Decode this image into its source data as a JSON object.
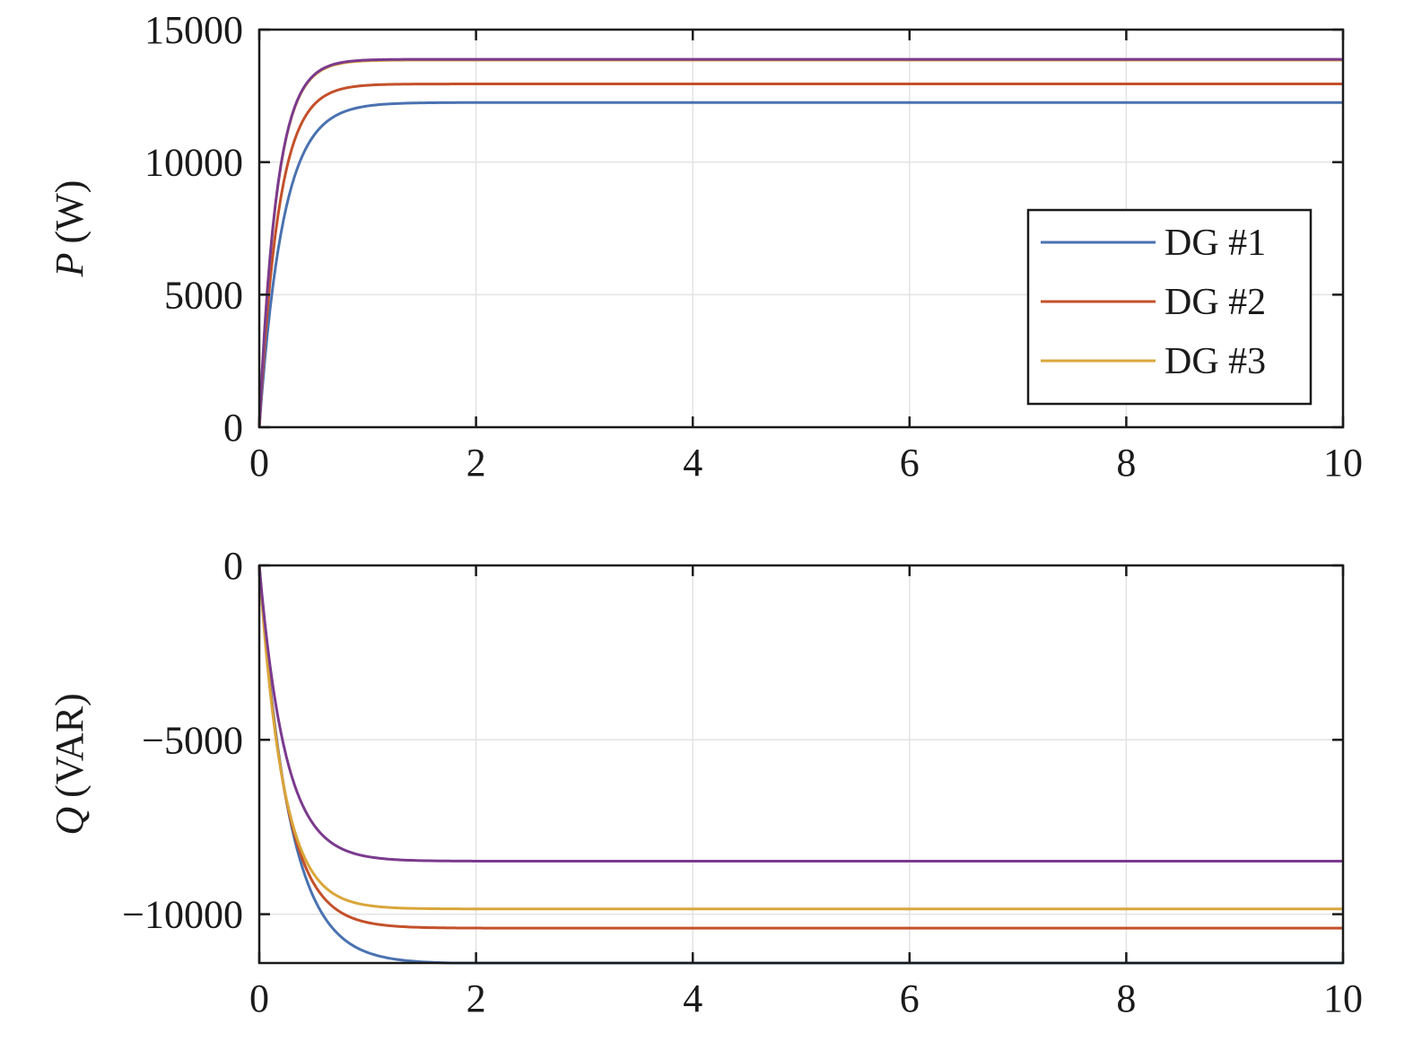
{
  "chart_data": [
    {
      "type": "line",
      "ylabel_italic": "P",
      "ylabel_unit": "(W)",
      "xlim": [
        0,
        10
      ],
      "ylim": [
        0,
        15000
      ],
      "xticks": [
        "0",
        "2",
        "4",
        "6",
        "8",
        "10"
      ],
      "yticks": [
        "0",
        "5000",
        "10000",
        "15000"
      ],
      "grid": true,
      "legend": "inside-right",
      "series": [
        {
          "name": "DG #1",
          "color": "#4a72b0",
          "initial": 0,
          "final": 12250,
          "tau": 0.22
        },
        {
          "name": "DG #2",
          "color": "#c4502a",
          "initial": 0,
          "final": 12950,
          "tau": 0.18
        },
        {
          "name": "DG #3",
          "color": "#d9a63a",
          "initial": 0,
          "final": 13850,
          "tau": 0.16
        },
        {
          "name": "",
          "color": "#7b3a8e",
          "initial": 0,
          "final": 13880,
          "tau": 0.16
        }
      ]
    },
    {
      "type": "line",
      "ylabel_italic": "Q",
      "ylabel_unit": "(VAR)",
      "xlim": [
        0,
        10
      ],
      "ylim": [
        -11400,
        0
      ],
      "xticks": [
        "0",
        "2",
        "4",
        "6",
        "8",
        "10"
      ],
      "yticks": [
        "0",
        "−5000",
        "−10000"
      ],
      "ytick_values": [
        0,
        -5000,
        -10000
      ],
      "grid": true,
      "series": [
        {
          "name": "DG #1",
          "color": "#4a72b0",
          "initial": 0,
          "final": -11420,
          "tau": 0.28
        },
        {
          "name": "DG #2",
          "color": "#c4502a",
          "initial": 0,
          "final": -10400,
          "tau": 0.24
        },
        {
          "name": "DG #3",
          "color": "#d9a63a",
          "initial": 0,
          "final": -9850,
          "tau": 0.22
        },
        {
          "name": "",
          "color": "#7b3a8e",
          "initial": 0,
          "final": -8480,
          "tau": 0.24
        }
      ]
    }
  ]
}
